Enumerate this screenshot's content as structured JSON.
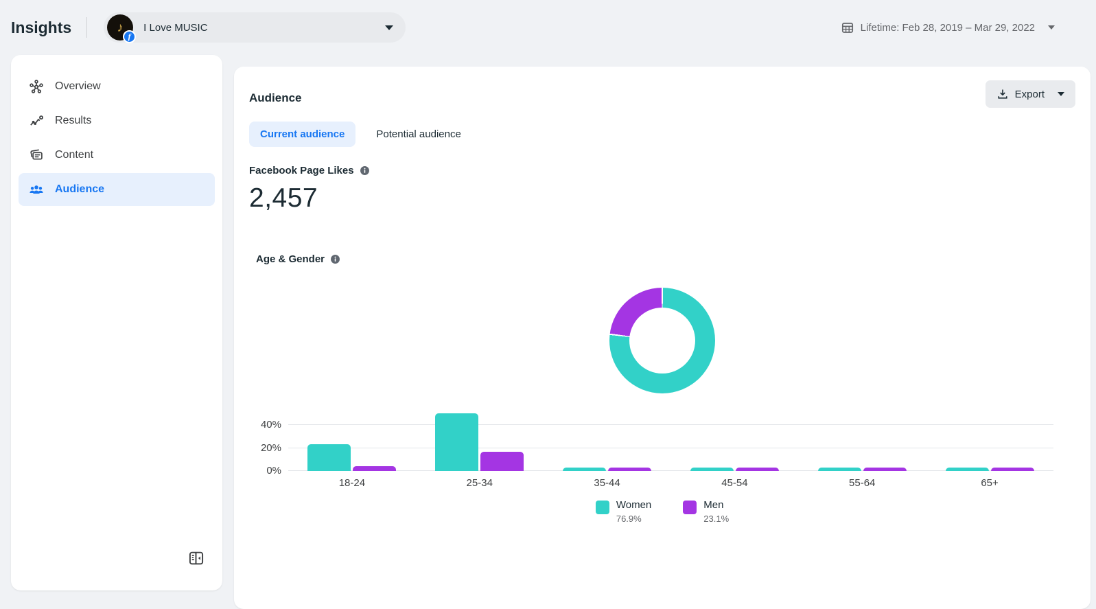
{
  "header": {
    "app_title": "Insights",
    "page_selector": {
      "page_name": "I Love MUSIC",
      "avatar_glyph": "♪",
      "badge_glyph": "f"
    },
    "date_range": {
      "label": "Lifetime: Feb 28, 2019 – Mar 29, 2022"
    }
  },
  "sidebar": {
    "items": [
      {
        "label": "Overview",
        "icon": "overview-icon",
        "active": false
      },
      {
        "label": "Results",
        "icon": "results-icon",
        "active": false
      },
      {
        "label": "Content",
        "icon": "content-icon",
        "active": false
      },
      {
        "label": "Audience",
        "icon": "audience-icon",
        "active": true
      }
    ]
  },
  "main": {
    "title": "Audience",
    "export_label": "Export",
    "tabs": [
      {
        "label": "Current audience",
        "active": true
      },
      {
        "label": "Potential audience",
        "active": false
      }
    ],
    "metric": {
      "label": "Facebook Page Likes",
      "value": "2,457"
    },
    "age_gender_title": "Age & Gender"
  },
  "colors": {
    "women": "#32D1C8",
    "men": "#A435E3",
    "accent_blue": "#1877F2"
  },
  "chart_data": [
    {
      "type": "pie",
      "title": "Age & Gender — gender split donut",
      "labels": [
        "Women",
        "Men"
      ],
      "values": [
        76.9,
        23.1
      ],
      "colors": [
        "#32D1C8",
        "#A435E3"
      ],
      "legend_position": "bottom",
      "legend": [
        {
          "label": "Women",
          "value": "76.9%"
        },
        {
          "label": "Men",
          "value": "23.1%"
        }
      ]
    },
    {
      "type": "bar",
      "title": "Age & Gender by age bracket (% of audience)",
      "categories": [
        "18-24",
        "25-34",
        "35-44",
        "45-54",
        "55-64",
        "65+"
      ],
      "series": [
        {
          "name": "Women",
          "color": "#32D1C8",
          "values": [
            23,
            50,
            2,
            2,
            2,
            2
          ]
        },
        {
          "name": "Men",
          "color": "#A435E3",
          "values": [
            4,
            17,
            2,
            2,
            2,
            2
          ]
        }
      ],
      "yticks": [
        {
          "label": "0%",
          "value": 0
        },
        {
          "label": "20%",
          "value": 20
        },
        {
          "label": "40%",
          "value": 40
        }
      ],
      "ylim": [
        0,
        56
      ],
      "grid": true,
      "legend_position": "bottom"
    }
  ]
}
